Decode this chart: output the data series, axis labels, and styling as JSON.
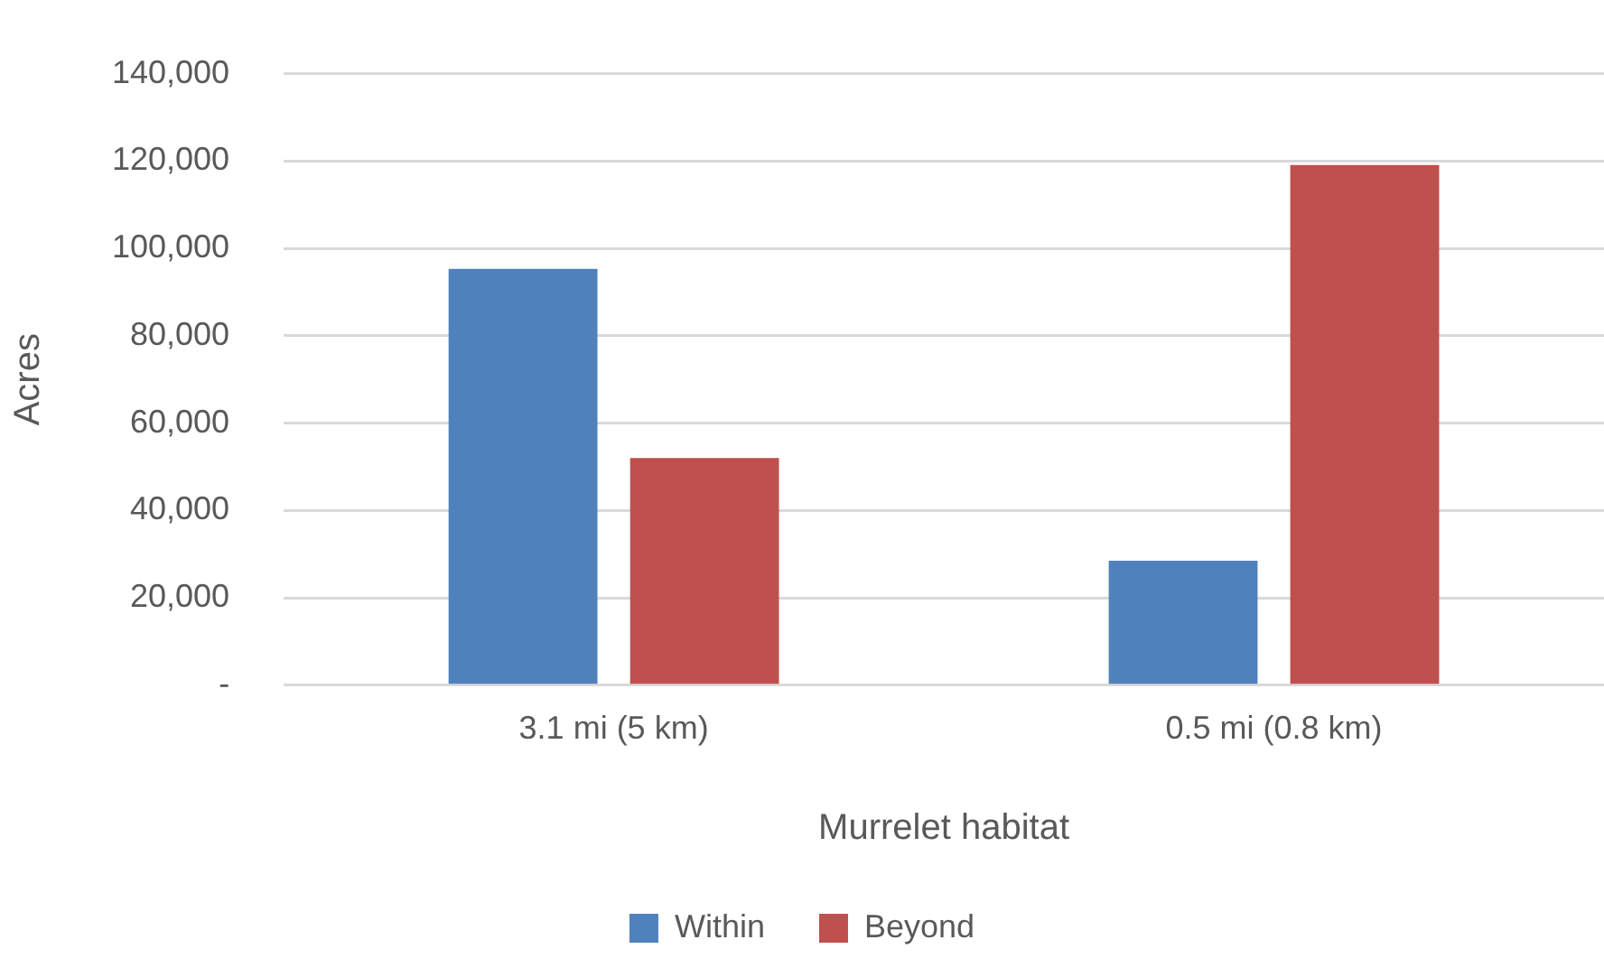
{
  "chart_data": {
    "type": "bar",
    "xlabel": "Murrelet habitat",
    "ylabel": "Acres",
    "categories": [
      "3.1 mi (5 km)",
      "0.5 mi (0.8 km)"
    ],
    "series": [
      {
        "name": "Within",
        "color": "#4f81bd",
        "values": [
          95300,
          28500
        ]
      },
      {
        "name": "Beyond",
        "color": "#c0504d",
        "values": [
          52000,
          119100
        ]
      }
    ],
    "ylim": [
      0,
      140000
    ],
    "yticks": [
      {
        "value": 0,
        "label": "-"
      },
      {
        "value": 20000,
        "label": "20,000"
      },
      {
        "value": 40000,
        "label": "40,000"
      },
      {
        "value": 60000,
        "label": "60,000"
      },
      {
        "value": 80000,
        "label": "80,000"
      },
      {
        "value": 100000,
        "label": "100,000"
      },
      {
        "value": 120000,
        "label": "120,000"
      },
      {
        "value": 140000,
        "label": "140,000"
      }
    ],
    "grid": "y",
    "legend": "bottom"
  }
}
